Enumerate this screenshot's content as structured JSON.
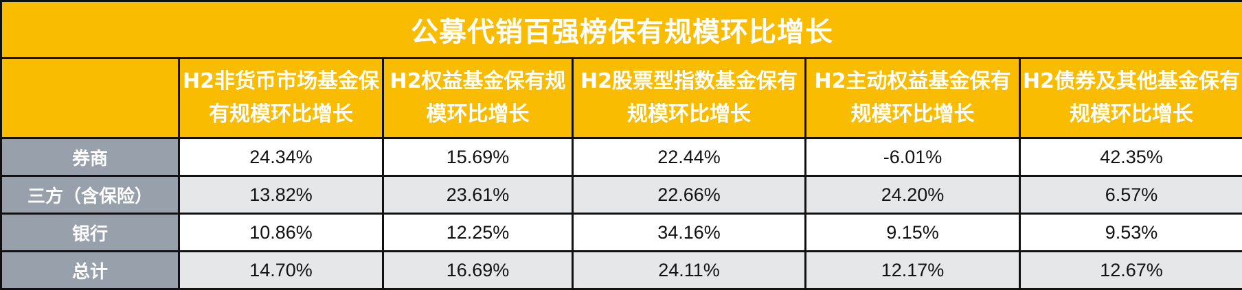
{
  "title": "公募代销百强榜保有规模环比增长",
  "colors": {
    "header_bg": "#F9BC00",
    "row_label_bg": "#97A0AB",
    "alt_row_bg": "#E6E7E9"
  },
  "columns": [
    "",
    "H2非货币市场基金保有规模环比增长",
    "H2权益基金保有规模环比增长",
    "H2股票型指数基金保有规模环比增长",
    "H2主动权益基金保有规模环比增长",
    "H2债券及其他基金保有规模环比增长"
  ],
  "rows": [
    {
      "label": "券商",
      "values": [
        "24.34%",
        "15.69%",
        "22.44%",
        "-6.01%",
        "42.35%"
      ]
    },
    {
      "label": "三方（含保险）",
      "values": [
        "13.82%",
        "23.61%",
        "22.66%",
        "24.20%",
        "6.57%"
      ]
    },
    {
      "label": "银行",
      "values": [
        "10.86%",
        "12.25%",
        "34.16%",
        "9.15%",
        "9.53%"
      ]
    },
    {
      "label": "总计",
      "values": [
        "14.70%",
        "16.69%",
        "24.11%",
        "12.17%",
        "12.67%"
      ]
    }
  ]
}
